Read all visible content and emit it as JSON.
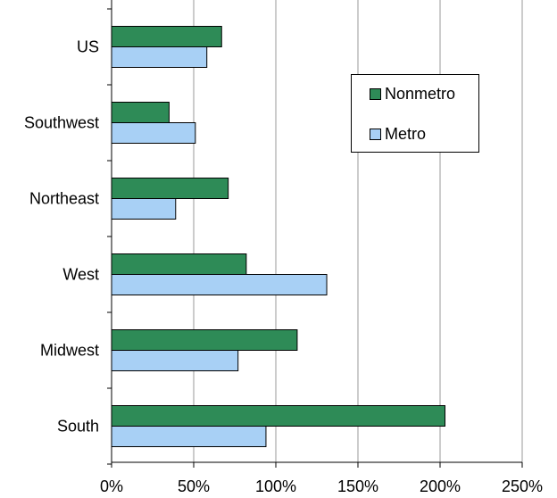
{
  "chart_data": {
    "type": "bar",
    "orientation": "horizontal",
    "categories": [
      "US",
      "Southwest",
      "Northeast",
      "West",
      "Midwest",
      "South"
    ],
    "series": [
      {
        "name": "Nonmetro",
        "color": "#2e8b57",
        "values": [
          67,
          35,
          71,
          82,
          113,
          203
        ]
      },
      {
        "name": "Metro",
        "color": "#a8d0f5",
        "values": [
          58,
          51,
          39,
          131,
          77,
          94
        ]
      }
    ],
    "x_ticks": [
      "0%",
      "50%",
      "100%",
      "150%",
      "200%",
      "250%"
    ],
    "xlim": [
      0,
      250
    ],
    "x_unit": "%",
    "grid": "vertical",
    "legend": "top-right inside plot",
    "title": "",
    "xlabel": "",
    "ylabel": ""
  }
}
